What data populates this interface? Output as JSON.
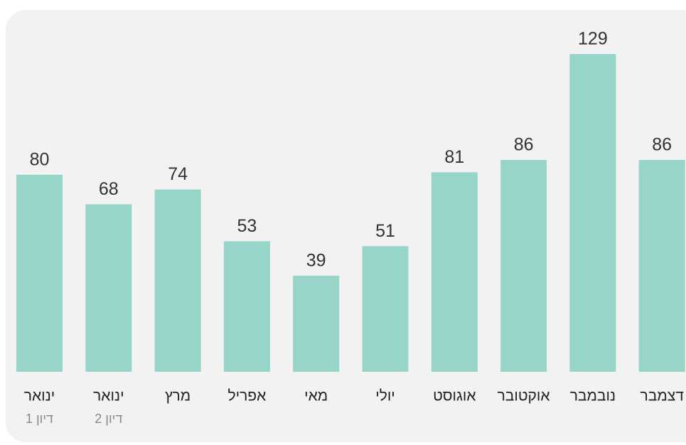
{
  "chart_data": {
    "type": "bar",
    "categories": [
      "ינואר",
      "ינואר",
      "מרץ",
      "אפריל",
      "מאי",
      "יולי",
      "אוגוסט",
      "אוקטובר",
      "נובמבר",
      "דצמבר"
    ],
    "sublabels": [
      "דיון 1",
      "דיון 2",
      null,
      null,
      null,
      null,
      null,
      null,
      null,
      null
    ],
    "values": [
      80,
      68,
      74,
      53,
      39,
      51,
      81,
      86,
      129,
      86
    ],
    "color": "#96d5c8"
  }
}
